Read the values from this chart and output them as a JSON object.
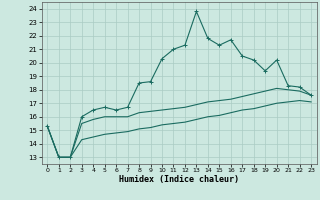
{
  "title": "",
  "xlabel": "Humidex (Indice chaleur)",
  "bg_color": "#cce8e0",
  "grid_color": "#aaccC4",
  "line_color": "#1a6b60",
  "xlim": [
    -0.5,
    23.5
  ],
  "ylim": [
    12.5,
    24.5
  ],
  "yticks": [
    13,
    14,
    15,
    16,
    17,
    18,
    19,
    20,
    21,
    22,
    23,
    24
  ],
  "xticks": [
    0,
    1,
    2,
    3,
    4,
    5,
    6,
    7,
    8,
    9,
    10,
    11,
    12,
    13,
    14,
    15,
    16,
    17,
    18,
    19,
    20,
    21,
    22,
    23
  ],
  "xtick_labels": [
    "0",
    "1",
    "2",
    "3",
    "4",
    "5",
    "6",
    "7",
    "8",
    "9",
    "10",
    "11",
    "12",
    "13",
    "14",
    "15",
    "16",
    "17",
    "18",
    "19",
    "20",
    "21",
    "22",
    "23"
  ],
  "line1_x": [
    0,
    1,
    2,
    3,
    4,
    5,
    6,
    7,
    8,
    9,
    10,
    11,
    12,
    13,
    14,
    15,
    16,
    17,
    18,
    19,
    20,
    21,
    22,
    23
  ],
  "line1_y": [
    15.3,
    13.0,
    13.0,
    16.0,
    16.5,
    16.7,
    16.5,
    16.7,
    18.5,
    18.6,
    20.3,
    21.0,
    21.3,
    23.8,
    21.8,
    21.3,
    21.7,
    20.5,
    20.2,
    19.4,
    20.2,
    18.3,
    18.2,
    17.6
  ],
  "line2_x": [
    0,
    1,
    2,
    3,
    4,
    5,
    6,
    7,
    8,
    9,
    10,
    11,
    12,
    13,
    14,
    15,
    16,
    17,
    18,
    19,
    20,
    21,
    22,
    23
  ],
  "line2_y": [
    15.3,
    13.0,
    13.0,
    15.5,
    15.8,
    16.0,
    16.0,
    16.0,
    16.3,
    16.4,
    16.5,
    16.6,
    16.7,
    16.9,
    17.1,
    17.2,
    17.3,
    17.5,
    17.7,
    17.9,
    18.1,
    18.0,
    17.9,
    17.6
  ],
  "line3_x": [
    0,
    1,
    2,
    3,
    4,
    5,
    6,
    7,
    8,
    9,
    10,
    11,
    12,
    13,
    14,
    15,
    16,
    17,
    18,
    19,
    20,
    21,
    22,
    23
  ],
  "line3_y": [
    15.3,
    13.0,
    13.0,
    14.3,
    14.5,
    14.7,
    14.8,
    14.9,
    15.1,
    15.2,
    15.4,
    15.5,
    15.6,
    15.8,
    16.0,
    16.1,
    16.3,
    16.5,
    16.6,
    16.8,
    17.0,
    17.1,
    17.2,
    17.1
  ]
}
